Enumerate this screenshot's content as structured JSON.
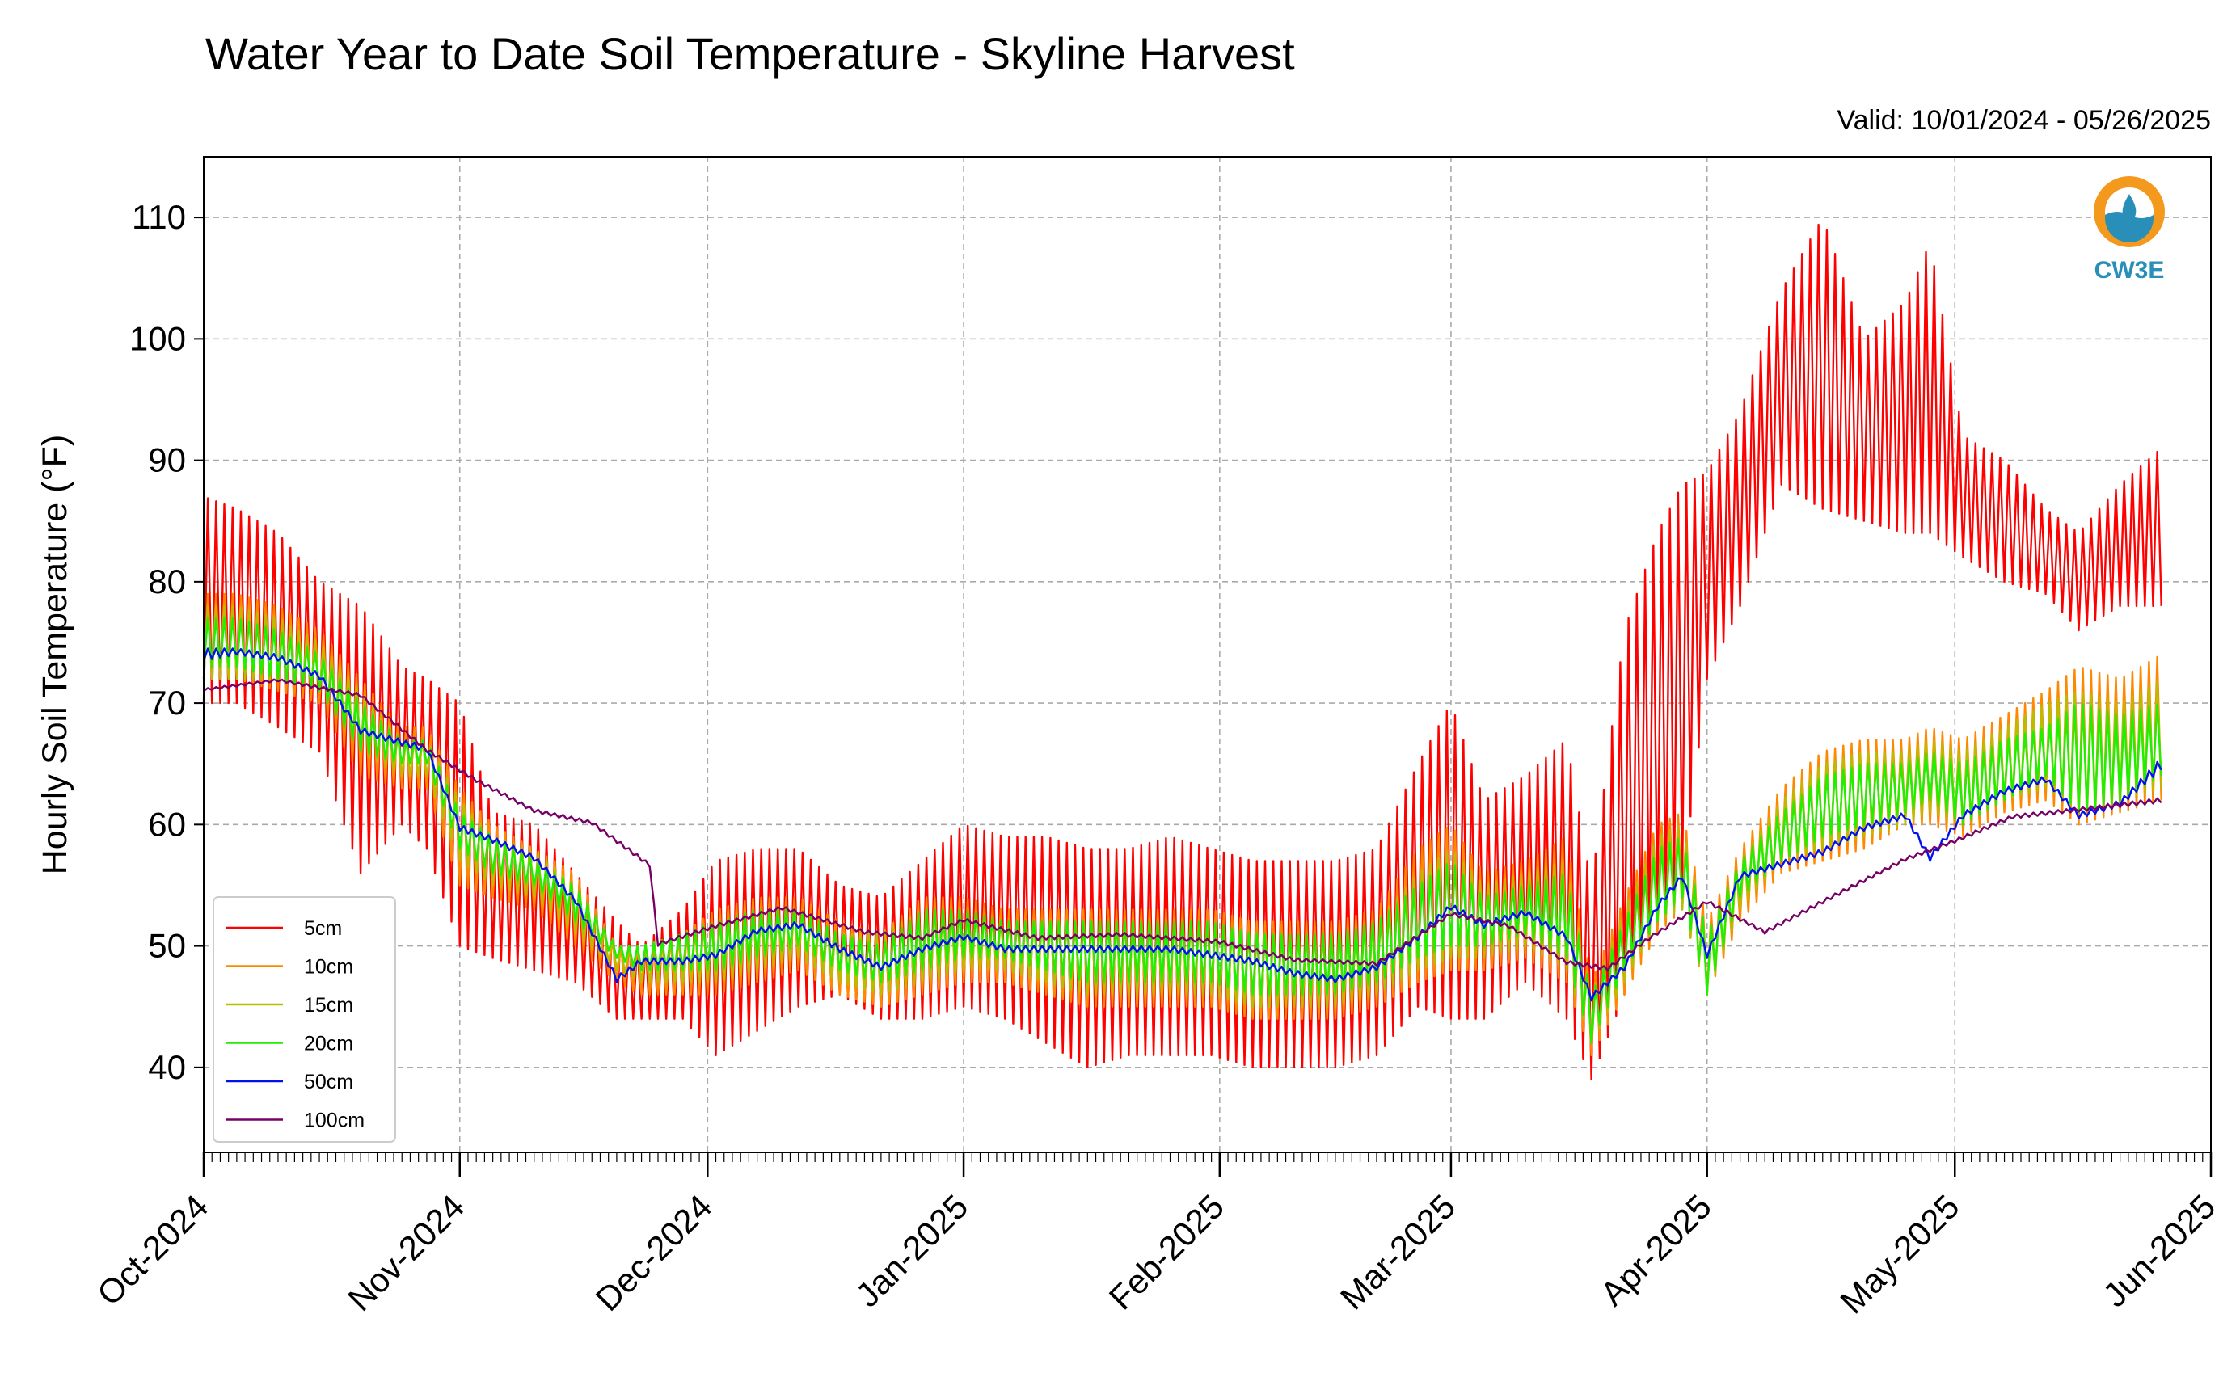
{
  "chart_data": {
    "type": "line",
    "title": "Water Year to Date Soil Temperature - Skyline Harvest",
    "subtitle": "Valid: 10/01/2024 - 05/26/2025",
    "xlabel": "",
    "ylabel": "Hourly Soil Temperature (°F)",
    "xlim": [
      "2024-10-01",
      "2025-06-01"
    ],
    "ylim": [
      33,
      115
    ],
    "y_ticks": [
      40,
      50,
      60,
      70,
      80,
      90,
      100,
      110
    ],
    "x_ticks": [
      {
        "date": "2024-10-01",
        "label": "Oct-2024"
      },
      {
        "date": "2024-11-01",
        "label": "Nov-2024"
      },
      {
        "date": "2024-12-01",
        "label": "Dec-2024"
      },
      {
        "date": "2025-01-01",
        "label": "Jan-2025"
      },
      {
        "date": "2025-02-01",
        "label": "Feb-2025"
      },
      {
        "date": "2025-03-01",
        "label": "Mar-2025"
      },
      {
        "date": "2025-04-01",
        "label": "Apr-2025"
      },
      {
        "date": "2025-05-01",
        "label": "May-2025"
      },
      {
        "date": "2025-06-01",
        "label": "Jun-2025"
      }
    ],
    "grid": true,
    "legend_position": "lower-left",
    "series": [
      {
        "name": "5cm",
        "color": "#ff0000",
        "x": [
          "2024-10-01",
          "2024-10-05",
          "2024-10-10",
          "2024-10-15",
          "2024-10-20",
          "2024-10-25",
          "2024-10-28",
          "2024-11-01",
          "2024-11-05",
          "2024-11-10",
          "2024-11-15",
          "2024-11-20",
          "2024-11-23",
          "2024-11-28",
          "2024-12-02",
          "2024-12-07",
          "2024-12-12",
          "2024-12-17",
          "2024-12-22",
          "2024-12-27",
          "2025-01-01",
          "2025-01-06",
          "2025-01-11",
          "2025-01-16",
          "2025-01-21",
          "2025-01-26",
          "2025-01-31",
          "2025-02-05",
          "2025-02-10",
          "2025-02-15",
          "2025-02-20",
          "2025-02-25",
          "2025-03-01",
          "2025-03-05",
          "2025-03-10",
          "2025-03-15",
          "2025-03-18",
          "2025-03-22",
          "2025-03-26",
          "2025-03-29",
          "2025-04-01",
          "2025-04-05",
          "2025-04-10",
          "2025-04-15",
          "2025-04-20",
          "2025-04-25",
          "2025-04-28",
          "2025-05-02",
          "2025-05-07",
          "2025-05-12",
          "2025-05-16",
          "2025-05-21",
          "2025-05-26"
        ],
        "min": [
          70,
          70,
          68,
          66,
          56,
          60,
          58,
          50,
          49,
          48,
          47,
          44,
          44,
          44,
          41,
          43,
          45,
          46,
          44,
          44,
          45,
          44,
          42,
          40,
          41,
          41,
          41,
          40,
          40,
          40,
          41,
          45,
          44,
          44,
          47,
          44,
          39,
          46,
          52,
          55,
          72,
          78,
          88,
          86,
          85,
          84,
          84,
          82,
          80,
          79,
          76,
          78,
          78
        ],
        "max": [
          87,
          86,
          84,
          80,
          78,
          73,
          72,
          70,
          61,
          60,
          56,
          52,
          50,
          53,
          57,
          58,
          58,
          55,
          54,
          57,
          60,
          59,
          59,
          58,
          58,
          59,
          58,
          57,
          57,
          57,
          58,
          65,
          70,
          62,
          64,
          67,
          55,
          76,
          84,
          88,
          89,
          94,
          104,
          110,
          100,
          103,
          108,
          92,
          90,
          86,
          84,
          88,
          91
        ]
      },
      {
        "name": "10cm",
        "color": "#ff8800",
        "x": [
          "2024-10-01",
          "2024-10-05",
          "2024-10-10",
          "2024-10-15",
          "2024-10-20",
          "2024-10-25",
          "2024-10-28",
          "2024-11-01",
          "2024-11-05",
          "2024-11-10",
          "2024-11-15",
          "2024-11-20",
          "2024-11-23",
          "2024-11-28",
          "2024-12-02",
          "2024-12-07",
          "2024-12-12",
          "2024-12-17",
          "2024-12-22",
          "2024-12-27",
          "2025-01-01",
          "2025-01-06",
          "2025-01-11",
          "2025-01-16",
          "2025-01-21",
          "2025-01-26",
          "2025-01-31",
          "2025-02-05",
          "2025-02-10",
          "2025-02-15",
          "2025-02-20",
          "2025-02-25",
          "2025-03-01",
          "2025-03-05",
          "2025-03-10",
          "2025-03-15",
          "2025-03-18",
          "2025-03-22",
          "2025-03-26",
          "2025-03-29",
          "2025-04-01",
          "2025-04-05",
          "2025-04-10",
          "2025-04-15",
          "2025-04-20",
          "2025-04-25",
          "2025-04-28",
          "2025-05-02",
          "2025-05-07",
          "2025-05-12",
          "2025-05-16",
          "2025-05-21",
          "2025-05-26"
        ],
        "min": [
          72,
          72,
          71,
          70,
          64,
          63,
          63,
          55,
          54,
          53,
          50,
          47,
          46,
          46,
          46,
          47,
          48,
          46,
          45,
          46,
          47,
          47,
          46,
          45,
          45,
          45,
          45,
          44,
          44,
          44,
          45,
          47,
          48,
          48,
          49,
          47,
          41,
          46,
          51,
          53,
          46,
          52,
          56,
          57,
          58,
          60,
          60,
          59,
          61,
          62,
          60,
          61,
          62
        ],
        "max": [
          79,
          79,
          78,
          76,
          72,
          68,
          68,
          63,
          60,
          58,
          56,
          50,
          50,
          51,
          53,
          54,
          54,
          52,
          51,
          54,
          54,
          53,
          53,
          53,
          53,
          53,
          53,
          52,
          52,
          52,
          53,
          58,
          60,
          56,
          57,
          59,
          47,
          54,
          60,
          61,
          52,
          58,
          63,
          66,
          67,
          67,
          68,
          67,
          69,
          71,
          73,
          72,
          74
        ]
      },
      {
        "name": "15cm",
        "color": "#bbbb00",
        "x": [
          "2024-10-01",
          "2024-10-05",
          "2024-10-10",
          "2024-10-15",
          "2024-10-20",
          "2024-10-25",
          "2024-10-28",
          "2024-11-01",
          "2024-11-05",
          "2024-11-10",
          "2024-11-15",
          "2024-11-20",
          "2024-11-23",
          "2024-11-28",
          "2024-12-02",
          "2024-12-07",
          "2024-12-12",
          "2024-12-17",
          "2024-12-22",
          "2024-12-27",
          "2025-01-01",
          "2025-01-06",
          "2025-01-11",
          "2025-01-16",
          "2025-01-21",
          "2025-01-26",
          "2025-01-31",
          "2025-02-05",
          "2025-02-10",
          "2025-02-15",
          "2025-02-20",
          "2025-02-25",
          "2025-03-01",
          "2025-03-05",
          "2025-03-10",
          "2025-03-15",
          "2025-03-18",
          "2025-03-22",
          "2025-03-26",
          "2025-03-29",
          "2025-04-01",
          "2025-04-05",
          "2025-04-10",
          "2025-04-15",
          "2025-04-20",
          "2025-04-25",
          "2025-04-28",
          "2025-05-02",
          "2025-05-07",
          "2025-05-12",
          "2025-05-16",
          "2025-05-21",
          "2025-05-26"
        ],
        "min": [
          72,
          72,
          72,
          71,
          66,
          64,
          64,
          57,
          55,
          54,
          51,
          48,
          47,
          47,
          47,
          48,
          49,
          47,
          46,
          47,
          48,
          48,
          47,
          46,
          46,
          46,
          46,
          45,
          45,
          45,
          46,
          48,
          49,
          49,
          50,
          48,
          42,
          47,
          52,
          53,
          46,
          53,
          57,
          58,
          59,
          60,
          61,
          60,
          62,
          63,
          61,
          62,
          63
        ],
        "max": [
          78,
          78,
          77,
          75,
          71,
          67,
          67,
          62,
          59,
          58,
          55,
          50,
          50,
          51,
          52,
          53,
          53,
          51,
          51,
          53,
          53,
          52,
          52,
          52,
          52,
          52,
          52,
          51,
          51,
          51,
          52,
          56,
          58,
          55,
          56,
          57,
          46,
          53,
          59,
          60,
          51,
          57,
          62,
          65,
          66,
          66,
          67,
          66,
          68,
          70,
          71,
          70,
          72
        ]
      },
      {
        "name": "20cm",
        "color": "#22ee00",
        "x": [
          "2024-10-01",
          "2024-10-05",
          "2024-10-10",
          "2024-10-15",
          "2024-10-20",
          "2024-10-25",
          "2024-10-28",
          "2024-11-01",
          "2024-11-05",
          "2024-11-10",
          "2024-11-15",
          "2024-11-20",
          "2024-11-23",
          "2024-11-28",
          "2024-12-02",
          "2024-12-07",
          "2024-12-12",
          "2024-12-17",
          "2024-12-22",
          "2024-12-27",
          "2025-01-01",
          "2025-01-06",
          "2025-01-11",
          "2025-01-16",
          "2025-01-21",
          "2025-01-26",
          "2025-01-31",
          "2025-02-05",
          "2025-02-10",
          "2025-02-15",
          "2025-02-20",
          "2025-02-25",
          "2025-03-01",
          "2025-03-05",
          "2025-03-10",
          "2025-03-15",
          "2025-03-18",
          "2025-03-22",
          "2025-03-26",
          "2025-03-29",
          "2025-04-01",
          "2025-04-05",
          "2025-04-10",
          "2025-04-15",
          "2025-04-20",
          "2025-04-25",
          "2025-04-28",
          "2025-05-02",
          "2025-05-07",
          "2025-05-12",
          "2025-05-16",
          "2025-05-21",
          "2025-05-26"
        ],
        "min": [
          73,
          73,
          72,
          71,
          66,
          65,
          65,
          58,
          56,
          55,
          52,
          49,
          48,
          48,
          48,
          49,
          50,
          48,
          47,
          48,
          49,
          49,
          48,
          47,
          47,
          47,
          47,
          46,
          46,
          46,
          47,
          49,
          50,
          50,
          51,
          49,
          42,
          48,
          52,
          54,
          46,
          54,
          57,
          59,
          60,
          61,
          62,
          60,
          62,
          64,
          61,
          62,
          64
        ],
        "max": [
          77,
          77,
          76,
          74,
          70,
          67,
          67,
          61,
          59,
          57,
          55,
          50,
          50,
          51,
          52,
          53,
          53,
          51,
          50,
          53,
          53,
          52,
          52,
          52,
          52,
          52,
          52,
          51,
          51,
          51,
          52,
          55,
          57,
          54,
          55,
          56,
          46,
          52,
          58,
          59,
          51,
          57,
          61,
          64,
          65,
          65,
          66,
          65,
          67,
          68,
          70,
          69,
          70
        ]
      },
      {
        "name": "50cm",
        "color": "#0011ee",
        "x": [
          "2024-10-01",
          "2024-10-05",
          "2024-10-10",
          "2024-10-15",
          "2024-10-20",
          "2024-10-25",
          "2024-10-28",
          "2024-11-01",
          "2024-11-05",
          "2024-11-10",
          "2024-11-15",
          "2024-11-20",
          "2024-11-23",
          "2024-11-28",
          "2024-12-02",
          "2024-12-07",
          "2024-12-12",
          "2024-12-17",
          "2024-12-22",
          "2024-12-27",
          "2025-01-01",
          "2025-01-06",
          "2025-01-11",
          "2025-01-16",
          "2025-01-21",
          "2025-01-26",
          "2025-01-31",
          "2025-02-05",
          "2025-02-10",
          "2025-02-15",
          "2025-02-20",
          "2025-02-25",
          "2025-03-01",
          "2025-03-05",
          "2025-03-10",
          "2025-03-15",
          "2025-03-18",
          "2025-03-22",
          "2025-03-26",
          "2025-03-29",
          "2025-04-01",
          "2025-04-05",
          "2025-04-10",
          "2025-04-15",
          "2025-04-20",
          "2025-04-25",
          "2025-04-28",
          "2025-05-02",
          "2025-05-07",
          "2025-05-12",
          "2025-05-16",
          "2025-05-21",
          "2025-05-26"
        ],
        "min": [
          73.5,
          74,
          73.5,
          72,
          67.5,
          66.5,
          66,
          59.5,
          58.5,
          57,
          53.5,
          47,
          48.5,
          48.5,
          49,
          51,
          51.5,
          49.5,
          48,
          49.5,
          50.5,
          49.5,
          49.5,
          49.5,
          49.5,
          49.5,
          49,
          48.5,
          47.5,
          47,
          48,
          50.5,
          53,
          51.5,
          52.5,
          50.5,
          45.5,
          48,
          53,
          55.5,
          49,
          55.5,
          56.5,
          57.5,
          59.5,
          60.5,
          57,
          60.5,
          62.5,
          63.5,
          60.5,
          61.5,
          64.5
        ],
        "max": [
          74.5,
          74.5,
          74,
          72.5,
          68,
          67,
          66.5,
          60,
          59,
          57.5,
          54,
          47.5,
          49,
          49,
          49.5,
          51.5,
          52,
          50,
          48.5,
          50,
          51,
          50,
          50,
          50,
          50,
          50,
          49.5,
          49,
          48,
          47.5,
          48.5,
          51,
          53.5,
          52,
          53,
          51,
          46,
          48.5,
          53.5,
          56,
          49.5,
          56,
          57,
          58,
          60,
          61,
          57.5,
          61,
          63,
          64,
          61,
          62,
          65.5
        ]
      },
      {
        "name": "100cm",
        "color": "#770066",
        "x": [
          "2024-10-01",
          "2024-10-10",
          "2024-10-20",
          "2024-10-28",
          "2024-11-03",
          "2024-11-10",
          "2024-11-17",
          "2024-11-24",
          "2024-11-25",
          "2024-12-02",
          "2024-12-10",
          "2024-12-20",
          "2024-12-27",
          "2025-01-01",
          "2025-01-10",
          "2025-01-20",
          "2025-02-01",
          "2025-02-10",
          "2025-02-20",
          "2025-03-01",
          "2025-03-08",
          "2025-03-15",
          "2025-03-20",
          "2025-03-25",
          "2025-04-01",
          "2025-04-08",
          "2025-04-15",
          "2025-04-25",
          "2025-05-01",
          "2025-05-08",
          "2025-05-15",
          "2025-05-26"
        ],
        "min": [
          71,
          71.8,
          70.5,
          66,
          63.5,
          61,
          60,
          56.5,
          50,
          51.5,
          53,
          51,
          50.5,
          52,
          50.5,
          50.8,
          50.2,
          48.7,
          48.4,
          52.5,
          51.5,
          48.5,
          48,
          50.5,
          53.5,
          51,
          53.5,
          57,
          58.5,
          60.5,
          61,
          61.8
        ],
        "max": [
          71.2,
          72,
          70.8,
          66.3,
          63.8,
          61.3,
          60.3,
          56.8,
          50.3,
          51.8,
          53.3,
          51.3,
          50.8,
          52.3,
          50.8,
          51.1,
          50.5,
          49,
          48.7,
          52.8,
          51.8,
          48.8,
          48.3,
          50.8,
          53.8,
          51.3,
          53.8,
          57.3,
          58.8,
          60.8,
          61.3,
          62.2
        ]
      }
    ]
  },
  "logo": {
    "text": "CW3E",
    "ring_color": "#f39a1e",
    "wave_color": "#2a8fb8"
  }
}
